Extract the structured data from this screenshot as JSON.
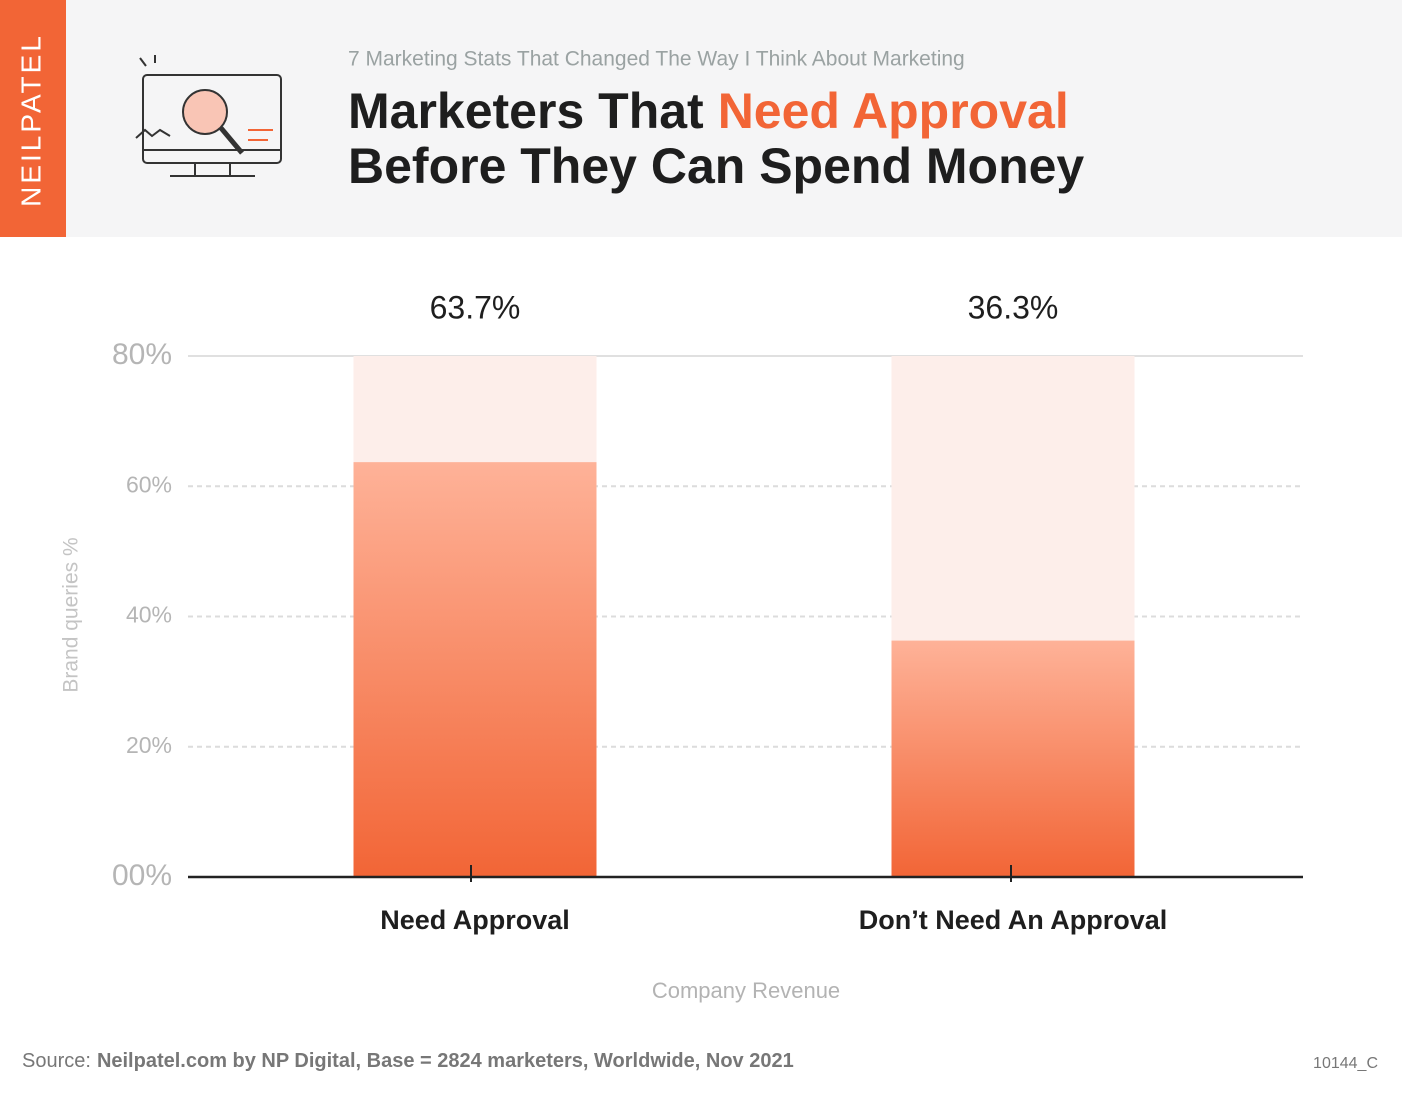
{
  "brand": "NEILPATEL",
  "chart_data": {
    "type": "bar",
    "subtitle": "7 Marketing Stats That Changed The Way I Think About Marketing",
    "title_segments": [
      "Marketers That",
      "Need Approval",
      "Before They Can Spend Money"
    ],
    "title_highlight": 1,
    "categories": [
      "Need Approval",
      "Don’t Need An Approval"
    ],
    "values": [
      63.7,
      36.3
    ],
    "value_labels": [
      "63.7%",
      "36.3%"
    ],
    "color": "#f26536",
    "color_top": "#feb298",
    "track_color": "#fdeeea",
    "ylim": [
      0,
      80
    ],
    "yticks": [
      {
        "value": 0,
        "label": "00%"
      },
      {
        "value": 20,
        "label": "20%"
      },
      {
        "value": 40,
        "label": "40%"
      },
      {
        "value": 60,
        "label": "60%"
      },
      {
        "value": 80,
        "label": "80%"
      }
    ],
    "ylabel": "Brand queries %",
    "xlabel": "Company Revenue",
    "grid": true
  },
  "footer": {
    "source_label": "Source:",
    "source": "Neilpatel.com by NP Digital, Base = 2824 marketers, Worldwide, Nov 2021",
    "code": "10144_C"
  }
}
